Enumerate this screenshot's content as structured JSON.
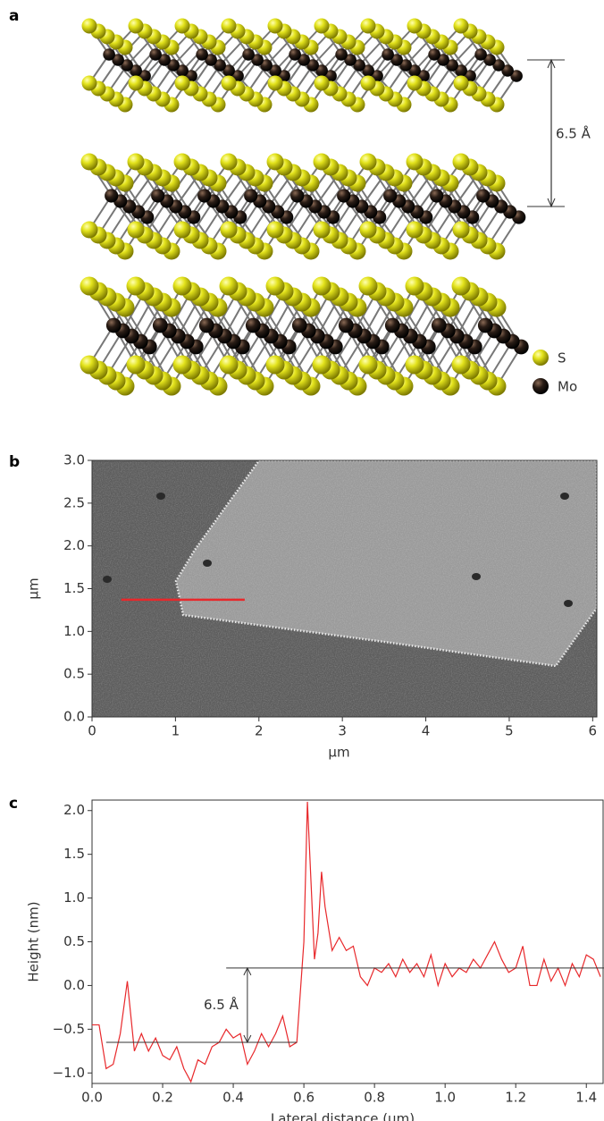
{
  "panel_a": {
    "label": "a",
    "spacing_label": "6.5 Å",
    "legend": [
      "S",
      "Mo"
    ]
  },
  "chart_data": [
    {
      "type": "image",
      "label": "b",
      "xlabel": "µm",
      "ylabel": "µm",
      "xlim": [
        0,
        6.05
      ],
      "ylim": [
        0,
        3
      ],
      "xticks": [
        0,
        1,
        2,
        3,
        4,
        5,
        6
      ],
      "yticks": [
        {
          "value": 0,
          "label": "0.0"
        },
        0.5,
        {
          "value": 1,
          "label": "1.0"
        },
        1.5,
        {
          "value": 2,
          "label": "2.0"
        },
        2.5,
        {
          "value": 3,
          "label": "3.0"
        }
      ],
      "profile_line": {
        "x": [
          0.35,
          1.83
        ],
        "y": 1.37,
        "color": "#e8282b"
      }
    },
    {
      "type": "line",
      "label": "c",
      "xlabel": "Lateral distance (µm)",
      "ylabel": "Height  (nm)",
      "xlim": [
        0,
        1.45
      ],
      "ylim": [
        -1.12,
        2.12
      ],
      "xticks": [
        {
          "value": 0,
          "label": "0.0"
        },
        0.2,
        0.4,
        0.6,
        0.8,
        {
          "value": 1,
          "label": "1.0"
        },
        1.2,
        1.4
      ],
      "yticks": [
        {
          "value": -1,
          "label": "−1.0"
        },
        {
          "value": -0.5,
          "label": "−0.5"
        },
        {
          "value": 0,
          "label": "0.0"
        },
        0.5,
        {
          "value": 1,
          "label": "1.0"
        },
        1.5,
        {
          "value": 2,
          "label": "2.0"
        }
      ],
      "color": "#e8282b",
      "x": [
        0,
        0.02,
        0.04,
        0.06,
        0.08,
        0.1,
        0.12,
        0.14,
        0.16,
        0.18,
        0.2,
        0.22,
        0.24,
        0.26,
        0.28,
        0.3,
        0.32,
        0.34,
        0.36,
        0.38,
        0.4,
        0.42,
        0.44,
        0.46,
        0.48,
        0.5,
        0.52,
        0.54,
        0.56,
        0.58,
        0.6,
        0.61,
        0.62,
        0.63,
        0.64,
        0.65,
        0.66,
        0.68,
        0.7,
        0.72,
        0.74,
        0.76,
        0.78,
        0.8,
        0.82,
        0.84,
        0.86,
        0.88,
        0.9,
        0.92,
        0.94,
        0.96,
        0.98,
        1,
        1.02,
        1.04,
        1.06,
        1.08,
        1.1,
        1.12,
        1.14,
        1.16,
        1.18,
        1.2,
        1.22,
        1.24,
        1.26,
        1.28,
        1.3,
        1.32,
        1.34,
        1.36,
        1.38,
        1.4,
        1.42,
        1.44
      ],
      "values": [
        -0.45,
        -0.45,
        -0.95,
        -0.9,
        -0.55,
        0.05,
        -0.75,
        -0.55,
        -0.75,
        -0.6,
        -0.8,
        -0.85,
        -0.7,
        -0.95,
        -1.1,
        -0.85,
        -0.9,
        -0.7,
        -0.65,
        -0.5,
        -0.6,
        -0.55,
        -0.9,
        -0.75,
        -0.55,
        -0.7,
        -0.55,
        -0.35,
        -0.7,
        -0.65,
        0.5,
        2.1,
        1.2,
        0.3,
        0.6,
        1.3,
        0.9,
        0.4,
        0.55,
        0.4,
        0.45,
        0.1,
        0,
        0.2,
        0.15,
        0.25,
        0.1,
        0.3,
        0.15,
        0.25,
        0.1,
        0.35,
        0,
        0.25,
        0.1,
        0.2,
        0.15,
        0.3,
        0.2,
        0.35,
        0.5,
        0.3,
        0.15,
        0.2,
        0.45,
        0,
        0,
        0.3,
        0.05,
        0.2,
        0,
        0.25,
        0.1,
        0.35,
        0.3,
        0.1
      ],
      "levels": [
        {
          "value": -0.65,
          "x": [
            0.04,
            0.58
          ]
        },
        {
          "value": 0.2,
          "x": [
            0.38,
            1.45
          ]
        }
      ],
      "step_label": "6.5 Å",
      "step_x": 0.44
    }
  ]
}
